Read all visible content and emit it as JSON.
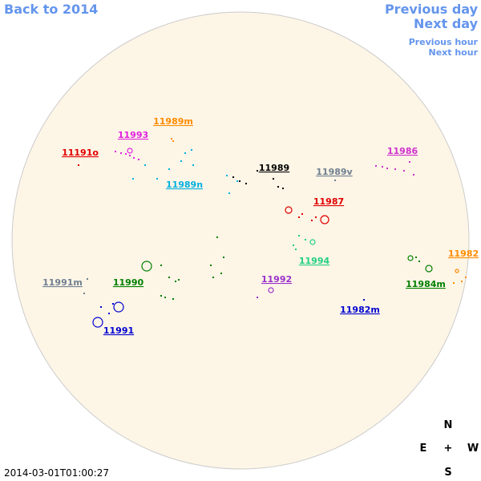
{
  "navigation": {
    "back": "Back to 2014",
    "previous_day": "Previous day",
    "next_day": "Next day",
    "previous_hour": "Previous hour",
    "next_hour": "Next hour"
  },
  "regions": [
    {
      "label": "11989m",
      "color": "#ff8c00"
    },
    {
      "label": "11993",
      "color": "#e020e0"
    },
    {
      "label": "11191o",
      "color": "#e00000"
    },
    {
      "label": "11986",
      "color": "#d030d0"
    },
    {
      "label": "11989",
      "color": "#000000"
    },
    {
      "label": "11989v",
      "color": "#708090"
    },
    {
      "label": "11989n",
      "color": "#00b0e0"
    },
    {
      "label": "11987",
      "color": "#e00000"
    },
    {
      "label": "11994",
      "color": "#20d080"
    },
    {
      "label": "11982",
      "color": "#ff8c00"
    },
    {
      "label": "11991m",
      "color": "#708090"
    },
    {
      "label": "11990",
      "color": "#008000"
    },
    {
      "label": "11992",
      "color": "#9932cc"
    },
    {
      "label": "11984m",
      "color": "#008000"
    },
    {
      "label": "11982m",
      "color": "#0000d0"
    },
    {
      "label": "11991",
      "color": "#0000d0"
    }
  ],
  "compass": {
    "north": "N",
    "east": "E",
    "center": "+",
    "west": "W",
    "south": "S"
  },
  "timestamp": "2014-03-01T01:00:27"
}
